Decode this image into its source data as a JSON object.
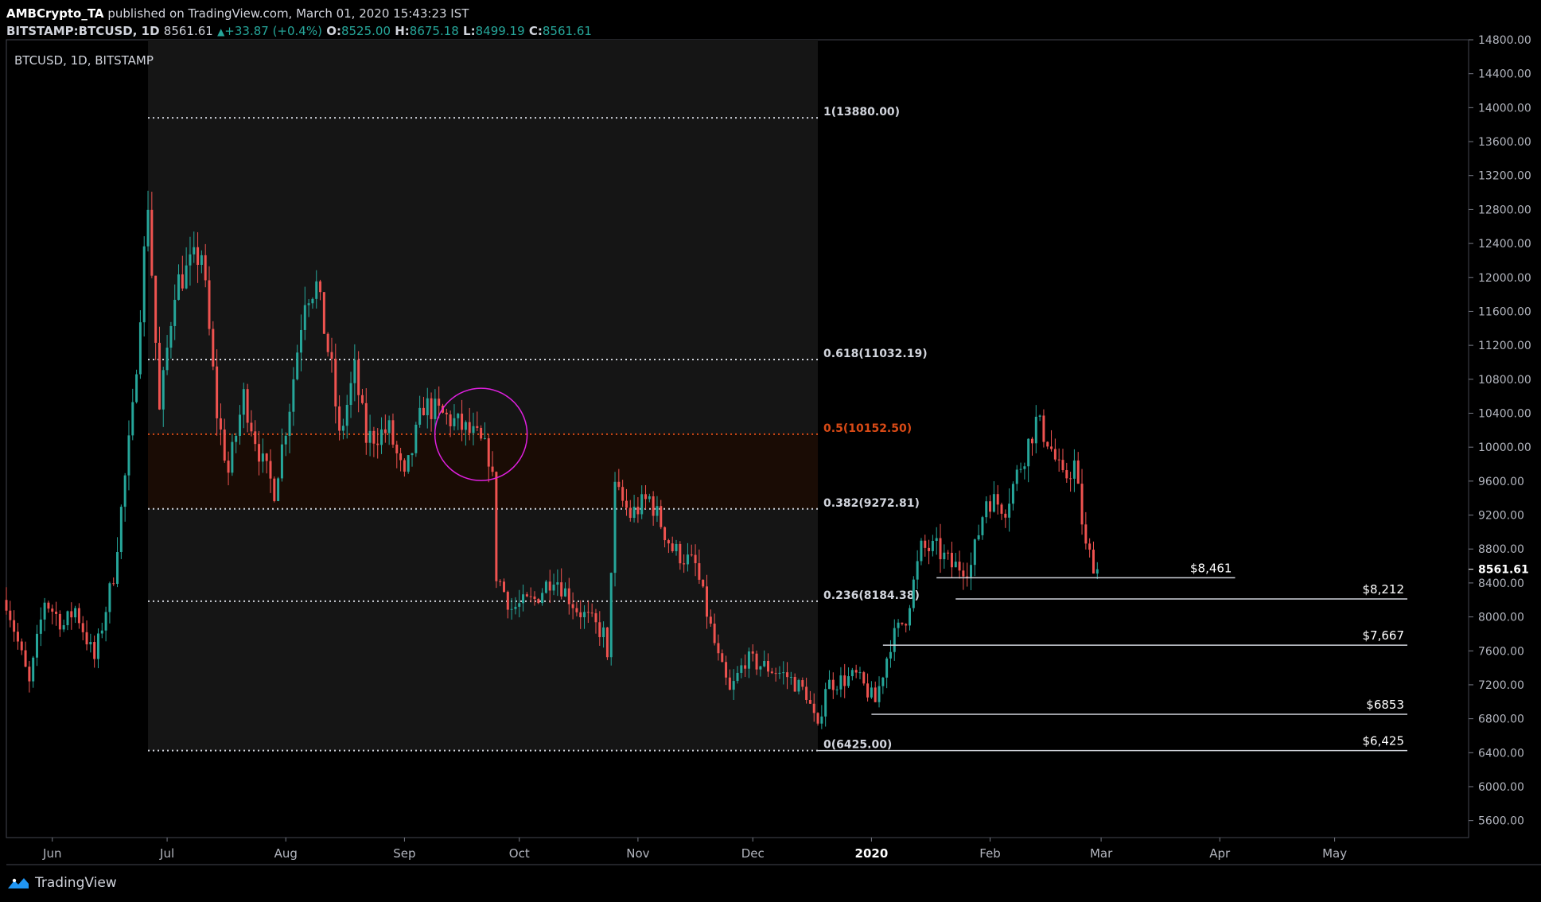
{
  "header": {
    "author": "AMBCrypto_TA",
    "published_text": "published on TradingView.com, March 01, 2020 15:43:23 IST",
    "symbol": "BITSTAMP:BTCUSD, 1D",
    "last": "8561.61",
    "change": "+33.87 (+0.4%)",
    "o_label": "O:",
    "o_value": "8525.00",
    "h_label": "H:",
    "h_value": "8675.18",
    "l_label": "L:",
    "l_value": "8499.19",
    "c_label": "C:",
    "c_value": "8561.61",
    "up_color": "#26a69a"
  },
  "footer": {
    "brand": "TradingView"
  },
  "chart_data": {
    "type": "candlestick",
    "title": "BTCUSD, 1D, BITSTAMP",
    "ylim": [
      5400,
      14800
    ],
    "y_ticks": [
      5600,
      6000,
      6400,
      6800,
      7200,
      7600,
      8000,
      8400,
      8800,
      9200,
      9600,
      10000,
      10400,
      10800,
      11200,
      11600,
      12000,
      12400,
      12800,
      13200,
      13600,
      14000,
      14400,
      14800
    ],
    "y_tick_labels": [
      "5600.00",
      "6000.00",
      "6400.00",
      "6800.00",
      "7200.00",
      "7600.00",
      "8000.00",
      "8400.00",
      "8800.00",
      "9200.00",
      "9600.00",
      "10000.00",
      "10400.00",
      "10800.00",
      "11200.00",
      "11600.00",
      "12000.00",
      "12400.00",
      "12800.00",
      "13200.00",
      "13600.00",
      "14000.00",
      "14400.00",
      "14800.00"
    ],
    "last_price_label": "8561.61",
    "last_price": 8561.61,
    "x_start": "2019-05-20",
    "x_end": "2020-06-05",
    "x_ticks": [
      {
        "date": "2019-06-01",
        "label": "Jun",
        "bold": false
      },
      {
        "date": "2019-07-01",
        "label": "Jul",
        "bold": false
      },
      {
        "date": "2019-08-01",
        "label": "Aug",
        "bold": false
      },
      {
        "date": "2019-09-01",
        "label": "Sep",
        "bold": false
      },
      {
        "date": "2019-10-01",
        "label": "Oct",
        "bold": false
      },
      {
        "date": "2019-11-01",
        "label": "Nov",
        "bold": false
      },
      {
        "date": "2019-12-01",
        "label": "Dec",
        "bold": false
      },
      {
        "date": "2020-01-01",
        "label": "2020",
        "bold": true
      },
      {
        "date": "2020-02-01",
        "label": "Feb",
        "bold": false
      },
      {
        "date": "2020-03-01",
        "label": "Mar",
        "bold": false
      },
      {
        "date": "2020-04-01",
        "label": "Apr",
        "bold": false
      },
      {
        "date": "2020-05-01",
        "label": "May",
        "bold": false
      }
    ],
    "price_anchors": [
      [
        "2019-05-20",
        8200
      ],
      [
        "2019-05-23",
        7700
      ],
      [
        "2019-05-26",
        7200
      ],
      [
        "2019-05-30",
        8200
      ],
      [
        "2019-06-04",
        7900
      ],
      [
        "2019-06-07",
        8100
      ],
      [
        "2019-06-12",
        7500
      ],
      [
        "2019-06-17",
        8500
      ],
      [
        "2019-06-22",
        10400
      ],
      [
        "2019-06-26",
        12900
      ],
      [
        "2019-06-29",
        10400
      ],
      [
        "2019-07-03",
        11900
      ],
      [
        "2019-07-10",
        12300
      ],
      [
        "2019-07-14",
        10400
      ],
      [
        "2019-07-17",
        9700
      ],
      [
        "2019-07-21",
        10600
      ],
      [
        "2019-07-26",
        9800
      ],
      [
        "2019-07-29",
        9500
      ],
      [
        "2019-08-02",
        10500
      ],
      [
        "2019-08-06",
        11800
      ],
      [
        "2019-08-09",
        11900
      ],
      [
        "2019-08-13",
        10900
      ],
      [
        "2019-08-15",
        10100
      ],
      [
        "2019-08-19",
        10900
      ],
      [
        "2019-08-22",
        10100
      ],
      [
        "2019-08-28",
        10200
      ],
      [
        "2019-09-01",
        9600
      ],
      [
        "2019-09-06",
        10500
      ],
      [
        "2019-09-14",
        10300
      ],
      [
        "2019-09-20",
        10100
      ],
      [
        "2019-09-23",
        9900
      ],
      [
        "2019-09-24",
        9600
      ],
      [
        "2019-09-25",
        8500
      ],
      [
        "2019-09-29",
        8100
      ],
      [
        "2019-10-05",
        8200
      ],
      [
        "2019-10-10",
        8500
      ],
      [
        "2019-10-16",
        8100
      ],
      [
        "2019-10-23",
        7800
      ],
      [
        "2019-10-24",
        7450
      ],
      [
        "2019-10-25",
        8600
      ],
      [
        "2019-10-26",
        9500
      ],
      [
        "2019-10-30",
        9200
      ],
      [
        "2019-11-04",
        9400
      ],
      [
        "2019-11-10",
        8800
      ],
      [
        "2019-11-16",
        8600
      ],
      [
        "2019-11-22",
        7500
      ],
      [
        "2019-11-25",
        7100
      ],
      [
        "2019-11-29",
        7500
      ],
      [
        "2019-12-05",
        7400
      ],
      [
        "2019-12-10",
        7300
      ],
      [
        "2019-12-15",
        7100
      ],
      [
        "2019-12-18",
        6650
      ],
      [
        "2019-12-20",
        7200
      ],
      [
        "2019-12-28",
        7300
      ],
      [
        "2020-01-02",
        7000
      ],
      [
        "2020-01-06",
        7700
      ],
      [
        "2020-01-10",
        8000
      ],
      [
        "2020-01-14",
        8800
      ],
      [
        "2020-01-18",
        8800
      ],
      [
        "2020-01-22",
        8600
      ],
      [
        "2020-01-27",
        8600
      ],
      [
        "2020-01-31",
        9400
      ],
      [
        "2020-02-05",
        9300
      ],
      [
        "2020-02-09",
        9800
      ],
      [
        "2020-02-13",
        10300
      ],
      [
        "2020-02-16",
        10100
      ],
      [
        "2020-02-20",
        9600
      ],
      [
        "2020-02-23",
        9800
      ],
      [
        "2020-02-26",
        8800
      ],
      [
        "2020-02-29",
        8560
      ]
    ],
    "fib_range": {
      "start": "2019-06-26",
      "end": "2019-12-18"
    },
    "fib_levels": [
      {
        "level": 1,
        "price": 13880,
        "label": "1(13880.00)",
        "color": "#d1d4dc"
      },
      {
        "level": 0.618,
        "price": 11032.19,
        "label": "0.618(11032.19)",
        "color": "#d1d4dc"
      },
      {
        "level": 0.5,
        "price": 10152.5,
        "label": "0.5(10152.50)",
        "color": "#d84a16"
      },
      {
        "level": 0.382,
        "price": 9272.81,
        "label": "0.382(9272.81)",
        "color": "#d1d4dc"
      },
      {
        "level": 0.236,
        "price": 8184.38,
        "label": "0.236(8184.38)",
        "color": "#d1d4dc"
      },
      {
        "level": 0,
        "price": 6425,
        "label": "0(6425.00)",
        "color": "#d1d4dc"
      }
    ],
    "support_lines": [
      {
        "price": 8461,
        "label": "$8,461",
        "start": "2020-01-18",
        "end": "2020-04-05"
      },
      {
        "price": 8212,
        "label": "$8,212",
        "start": "2020-01-23",
        "end": "2020-05-20"
      },
      {
        "price": 7667,
        "label": "$7,667",
        "start": "2020-01-04",
        "end": "2020-05-20"
      },
      {
        "price": 6853,
        "label": "$6853",
        "start": "2020-01-01",
        "end": "2020-05-20"
      },
      {
        "price": 6425,
        "label": "$6,425",
        "start": "2019-12-18",
        "end": "2020-05-20"
      }
    ],
    "circle_annotation": {
      "date": "2019-09-21",
      "price": 10150,
      "color": "#e020e0"
    },
    "up_color": "#26a69a",
    "down_color": "#ef5350"
  }
}
